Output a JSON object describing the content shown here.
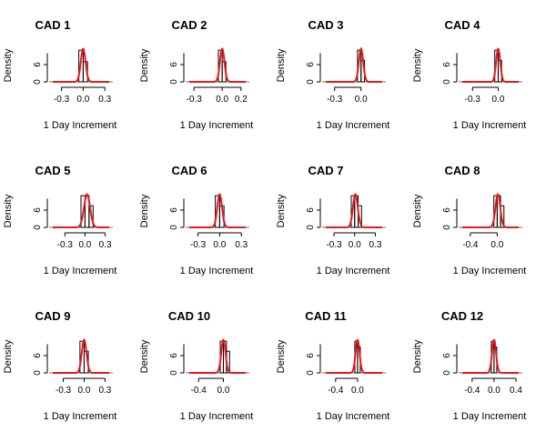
{
  "figure": {
    "background": "#ffffff",
    "curve_color": "#e41a1c",
    "hist_color": "#000000"
  },
  "chart_data": [
    {
      "type": "histogram",
      "title": "CAD 1",
      "xlabel": "1 Day Increment",
      "ylabel": "Density",
      "xticks": [
        "-0.3",
        "0.0",
        "0.3"
      ],
      "yticks": [
        "0",
        "6"
      ],
      "xlim": [
        -0.42,
        0.36
      ],
      "ylim": [
        0,
        12
      ],
      "bins": [
        {
          "x0": -0.06,
          "x1": 0.0,
          "density": 11
        },
        {
          "x0": 0.0,
          "x1": 0.06,
          "density": 7
        }
      ],
      "curve": {
        "mean": 0.0,
        "sd": 0.033
      }
    },
    {
      "type": "histogram",
      "title": "CAD 2",
      "xlabel": "1 Day Increment",
      "ylabel": "Density",
      "xticks": [
        "-0.3",
        "0.0",
        "0.2"
      ],
      "yticks": [
        "0",
        "6"
      ],
      "xlim": [
        -0.35,
        0.25
      ],
      "ylim": [
        0,
        12
      ],
      "bins": [
        {
          "x0": -0.04,
          "x1": 0.0,
          "density": 11
        },
        {
          "x0": 0.0,
          "x1": 0.04,
          "density": 7
        }
      ],
      "curve": {
        "mean": 0.0,
        "sd": 0.024
      }
    },
    {
      "type": "histogram",
      "title": "CAD 3",
      "xlabel": "1 Day Increment",
      "ylabel": "Density",
      "xticks": [
        "-0.3",
        "0.0"
      ],
      "yticks": [
        "0",
        "6"
      ],
      "xlim": [
        -0.4,
        0.24
      ],
      "ylim": [
        0,
        12
      ],
      "bins": [
        {
          "x0": -0.04,
          "x1": 0.0,
          "density": 11
        },
        {
          "x0": 0.0,
          "x1": 0.04,
          "density": 7.5
        }
      ],
      "curve": {
        "mean": 0.0,
        "sd": 0.025
      }
    },
    {
      "type": "histogram",
      "title": "CAD 4",
      "xlabel": "1 Day Increment",
      "ylabel": "Density",
      "xticks": [
        "-0.3",
        "0.0"
      ],
      "yticks": [
        "0",
        "6"
      ],
      "xlim": [
        -0.42,
        0.24
      ],
      "ylim": [
        0,
        12
      ],
      "bins": [
        {
          "x0": -0.04,
          "x1": 0.0,
          "density": 11
        },
        {
          "x0": 0.0,
          "x1": 0.04,
          "density": 7.5
        }
      ],
      "curve": {
        "mean": 0.0,
        "sd": 0.024
      }
    },
    {
      "type": "histogram",
      "title": "CAD 5",
      "xlabel": "1 Day Increment",
      "ylabel": "Density",
      "xticks": [
        "-0.3",
        "0.0",
        "0.3"
      ],
      "yticks": [
        "0",
        "6"
      ],
      "xlim": [
        -0.48,
        0.36
      ],
      "ylim": [
        0,
        12
      ],
      "bins": [
        {
          "x0": -0.06,
          "x1": 0.0,
          "density": 11
        },
        {
          "x0": 0.0,
          "x1": 0.06,
          "density": 11
        },
        {
          "x0": 0.06,
          "x1": 0.12,
          "density": 7.5
        }
      ],
      "curve": {
        "mean": 0.03,
        "sd": 0.045
      }
    },
    {
      "type": "histogram",
      "title": "CAD 6",
      "xlabel": "1 Day Increment",
      "ylabel": "Density",
      "xticks": [
        "-0.3",
        "0.0",
        "0.3"
      ],
      "yticks": [
        "0",
        "6"
      ],
      "xlim": [
        -0.42,
        0.36
      ],
      "ylim": [
        0,
        12
      ],
      "bins": [
        {
          "x0": -0.06,
          "x1": 0.0,
          "density": 11
        },
        {
          "x0": 0.0,
          "x1": 0.06,
          "density": 7.5
        }
      ],
      "curve": {
        "mean": 0.0,
        "sd": 0.033
      }
    },
    {
      "type": "histogram",
      "title": "CAD 7",
      "xlabel": "1 Day Increment",
      "ylabel": "Density",
      "xticks": [
        "-0.3",
        "0.0",
        "0.3"
      ],
      "yticks": [
        "0",
        "6"
      ],
      "xlim": [
        -0.42,
        0.4
      ],
      "ylim": [
        0,
        12
      ],
      "bins": [
        {
          "x0": -0.05,
          "x1": 0.0,
          "density": 11
        },
        {
          "x0": 0.0,
          "x1": 0.05,
          "density": 11
        },
        {
          "x0": 0.05,
          "x1": 0.1,
          "density": 7.5
        }
      ],
      "curve": {
        "mean": 0.01,
        "sd": 0.035
      }
    },
    {
      "type": "histogram",
      "title": "CAD 8",
      "xlabel": "1 Day Increment",
      "ylabel": "Density",
      "xticks": [
        "-0.4",
        "0.0"
      ],
      "yticks": [
        "0",
        "6"
      ],
      "xlim": [
        -0.52,
        0.32
      ],
      "ylim": [
        0,
        12
      ],
      "bins": [
        {
          "x0": -0.05,
          "x1": 0.0,
          "density": 11
        },
        {
          "x0": 0.0,
          "x1": 0.05,
          "density": 11
        },
        {
          "x0": 0.05,
          "x1": 0.1,
          "density": 7.5
        }
      ],
      "curve": {
        "mean": 0.01,
        "sd": 0.036
      }
    },
    {
      "type": "histogram",
      "title": "CAD 9",
      "xlabel": "1 Day Increment",
      "ylabel": "Density",
      "xticks": [
        "-0.3",
        "0.0",
        "0.3"
      ],
      "yticks": [
        "0",
        "6"
      ],
      "xlim": [
        -0.45,
        0.36
      ],
      "ylim": [
        0,
        12
      ],
      "bins": [
        {
          "x0": -0.06,
          "x1": 0.0,
          "density": 11
        },
        {
          "x0": 0.0,
          "x1": 0.06,
          "density": 7.5
        }
      ],
      "curve": {
        "mean": 0.0,
        "sd": 0.034
      }
    },
    {
      "type": "histogram",
      "title": "CAD 10",
      "xlabel": "1 Day Increment",
      "ylabel": "Density",
      "xticks": [
        "-0.4",
        "0.0"
      ],
      "yticks": [
        "0",
        "6"
      ],
      "xlim": [
        -0.55,
        0.36
      ],
      "ylim": [
        0,
        12
      ],
      "bins": [
        {
          "x0": -0.05,
          "x1": 0.0,
          "density": 11
        },
        {
          "x0": 0.0,
          "x1": 0.05,
          "density": 11
        },
        {
          "x0": 0.05,
          "x1": 0.1,
          "density": 7.5
        }
      ],
      "curve": {
        "mean": 0.0,
        "sd": 0.035
      }
    },
    {
      "type": "histogram",
      "title": "CAD 11",
      "xlabel": "1 Day Increment",
      "ylabel": "Density",
      "xticks": [
        "-0.4",
        "0.0"
      ],
      "yticks": [
        "0",
        "6"
      ],
      "xlim": [
        -0.58,
        0.45
      ],
      "ylim": [
        0,
        12
      ],
      "bins": [
        {
          "x0": -0.05,
          "x1": 0.0,
          "density": 11
        },
        {
          "x0": 0.0,
          "x1": 0.05,
          "density": 9
        }
      ],
      "curve": {
        "mean": 0.0,
        "sd": 0.037
      }
    },
    {
      "type": "histogram",
      "title": "CAD 12",
      "xlabel": "1 Day Increment",
      "ylabel": "Density",
      "xticks": [
        "-0.4",
        "0.0",
        "0.4"
      ],
      "yticks": [
        "0",
        "6"
      ],
      "xlim": [
        -0.58,
        0.45
      ],
      "ylim": [
        0,
        12
      ],
      "bins": [
        {
          "x0": -0.05,
          "x1": 0.0,
          "density": 11
        },
        {
          "x0": 0.0,
          "x1": 0.05,
          "density": 9
        }
      ],
      "curve": {
        "mean": 0.0,
        "sd": 0.037
      }
    }
  ]
}
